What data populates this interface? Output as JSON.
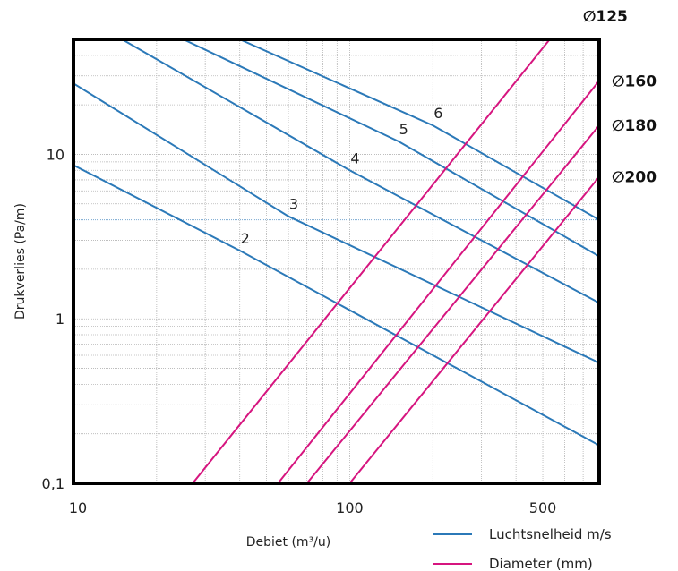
{
  "chart_data": {
    "type": "line",
    "title": "",
    "xlabel": "Debiet (m³/u)",
    "ylabel": "Drukverlies (Pa/m)",
    "xscale": "log",
    "yscale": "log",
    "xlim": [
      10,
      800
    ],
    "ylim": [
      0.1,
      50
    ],
    "xticks": [
      "10",
      "100",
      "500"
    ],
    "yticks": [
      "0,1",
      "1",
      "10"
    ],
    "grid": true,
    "legend": {
      "placement": "bottom-right",
      "entries": [
        "Luchtsnelheid m/s",
        "Diameter (mm)"
      ]
    },
    "colors": {
      "velocity": "#2b79b8",
      "diameter": "#d6157f",
      "grid": "#b5b5b5",
      "frame": "#000000"
    },
    "velocity_series": [
      {
        "label": "2",
        "points": [
          [
            10,
            8.6
          ],
          [
            40,
            2.6
          ],
          [
            800,
            0.17
          ]
        ]
      },
      {
        "label": "3",
        "points": [
          [
            10,
            27
          ],
          [
            60,
            4.2
          ],
          [
            800,
            0.54
          ]
        ]
      },
      {
        "label": "4",
        "points": [
          [
            15,
            50
          ],
          [
            100,
            8.0
          ],
          [
            800,
            1.25
          ]
        ]
      },
      {
        "label": "5",
        "points": [
          [
            25,
            50
          ],
          [
            150,
            12
          ],
          [
            800,
            2.4
          ]
        ]
      },
      {
        "label": "6",
        "points": [
          [
            40,
            50
          ],
          [
            200,
            15
          ],
          [
            800,
            4.0
          ]
        ]
      }
    ],
    "diameter_series": [
      {
        "label": "∅125",
        "points": [
          [
            27,
            0.1
          ],
          [
            530,
            50
          ]
        ]
      },
      {
        "label": "∅160",
        "points": [
          [
            55,
            0.1
          ],
          [
            800,
            28
          ]
        ]
      },
      {
        "label": "∅180",
        "points": [
          [
            70,
            0.1
          ],
          [
            800,
            15
          ]
        ]
      },
      {
        "label": "∅200",
        "points": [
          [
            100,
            0.1
          ],
          [
            800,
            7.3
          ]
        ]
      }
    ],
    "highlight_line_y": 4
  }
}
